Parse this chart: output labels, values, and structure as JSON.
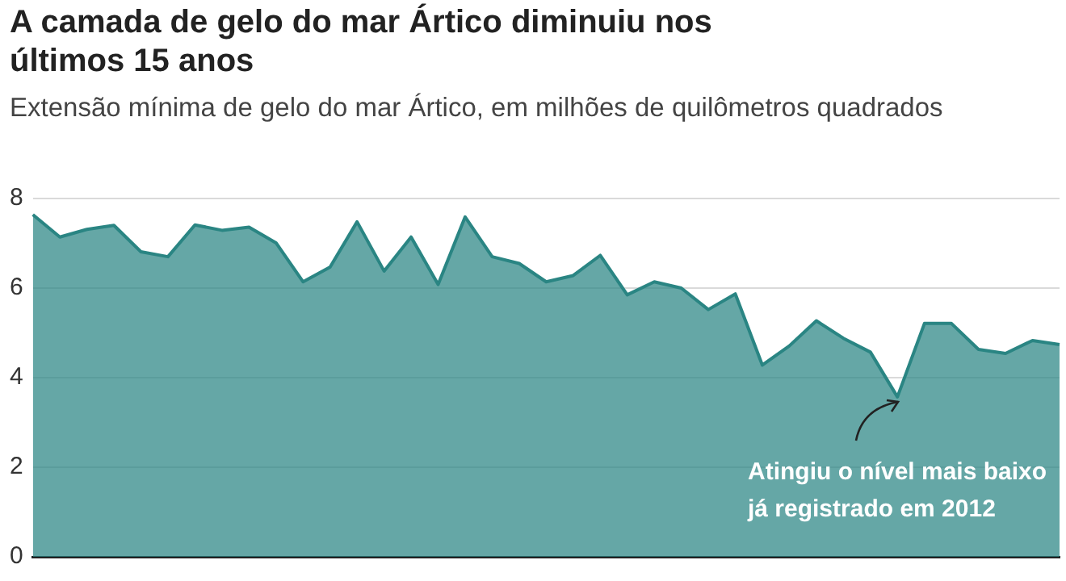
{
  "chart_data": {
    "type": "area",
    "title": "A camada de gelo do mar Ártico diminuiu nos últimos 15 anos",
    "subtitle": "Extensão mínima de gelo do mar Ártico, em milhões de quilômetros quadrados",
    "categories": [
      null,
      null,
      null,
      null,
      null,
      null,
      null,
      null,
      null,
      null,
      null,
      null,
      null,
      null,
      null,
      null,
      null,
      null,
      null,
      null,
      null,
      null,
      null,
      null,
      null,
      null,
      null,
      null,
      null,
      null,
      null,
      null,
      null,
      null,
      null,
      null,
      null,
      null,
      null
    ],
    "values": [
      7.64,
      7.14,
      7.31,
      7.4,
      6.81,
      6.7,
      7.41,
      7.29,
      7.36,
      7.01,
      6.14,
      6.47,
      7.48,
      6.38,
      7.14,
      6.08,
      7.59,
      6.7,
      6.55,
      6.14,
      6.28,
      6.73,
      5.85,
      6.14,
      6.0,
      5.52,
      5.87,
      4.28,
      4.71,
      5.27,
      4.88,
      4.57,
      3.57,
      5.21,
      5.21,
      4.63,
      4.54,
      4.83,
      4.74
    ],
    "color": "#2a8583",
    "ylim": [
      0,
      8
    ],
    "yticks": [
      0,
      2,
      4,
      6,
      8
    ],
    "grid": "y",
    "legend": false,
    "marker": "none",
    "tick_labels": "y",
    "annotations": [
      "Atingiu o nível mais baixo já registrado em 2012"
    ]
  }
}
